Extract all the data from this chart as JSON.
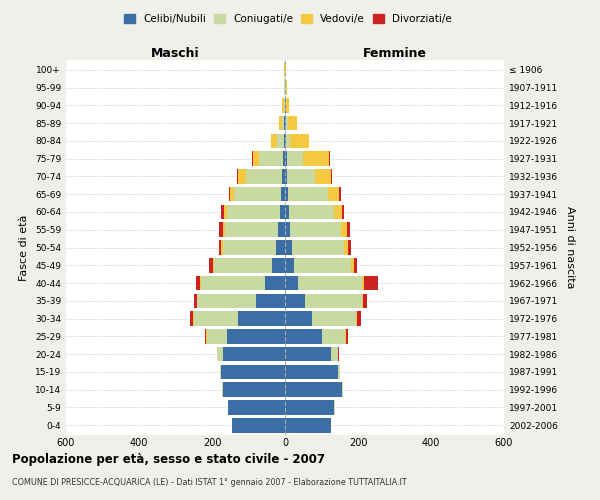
{
  "age_groups": [
    "0-4",
    "5-9",
    "10-14",
    "15-19",
    "20-24",
    "25-29",
    "30-34",
    "35-39",
    "40-44",
    "45-49",
    "50-54",
    "55-59",
    "60-64",
    "65-69",
    "70-74",
    "75-79",
    "80-84",
    "85-89",
    "90-94",
    "95-99",
    "100+"
  ],
  "birth_years": [
    "2002-2006",
    "1997-2001",
    "1992-1996",
    "1987-1991",
    "1982-1986",
    "1977-1981",
    "1972-1976",
    "1967-1971",
    "1962-1966",
    "1957-1961",
    "1952-1956",
    "1947-1951",
    "1942-1946",
    "1937-1941",
    "1932-1936",
    "1927-1931",
    "1922-1926",
    "1917-1921",
    "1912-1916",
    "1907-1911",
    "≤ 1906"
  ],
  "colors": {
    "celibi": "#3a6ea5",
    "coniugati": "#c8d9a2",
    "vedovi": "#f5c842",
    "divorziati": "#cc2222"
  },
  "male": {
    "celibi": [
      145,
      155,
      170,
      175,
      170,
      160,
      130,
      80,
      55,
      35,
      25,
      20,
      15,
      10,
      8,
      5,
      3,
      2,
      1,
      1,
      1
    ],
    "coniugati": [
      1,
      1,
      2,
      3,
      15,
      55,
      120,
      160,
      175,
      160,
      145,
      145,
      145,
      130,
      100,
      65,
      20,
      5,
      2,
      1,
      0
    ],
    "vedovi": [
      0,
      0,
      0,
      0,
      0,
      1,
      2,
      2,
      3,
      3,
      4,
      5,
      8,
      10,
      20,
      18,
      15,
      10,
      4,
      2,
      1
    ],
    "divorziati": [
      0,
      0,
      0,
      0,
      1,
      2,
      8,
      8,
      12,
      10,
      6,
      12,
      6,
      4,
      3,
      3,
      1,
      0,
      0,
      0,
      0
    ]
  },
  "female": {
    "nubili": [
      125,
      135,
      155,
      145,
      125,
      100,
      75,
      55,
      35,
      25,
      18,
      14,
      10,
      8,
      6,
      5,
      3,
      3,
      2,
      1,
      1
    ],
    "coniugati": [
      1,
      1,
      3,
      5,
      20,
      65,
      120,
      155,
      175,
      155,
      145,
      140,
      125,
      110,
      75,
      45,
      12,
      5,
      2,
      1,
      0
    ],
    "vedovi": [
      0,
      0,
      0,
      0,
      1,
      2,
      3,
      4,
      6,
      8,
      10,
      15,
      20,
      30,
      45,
      70,
      50,
      25,
      8,
      3,
      1
    ],
    "divorziati": [
      0,
      0,
      0,
      1,
      2,
      5,
      10,
      10,
      40,
      10,
      8,
      10,
      8,
      6,
      3,
      2,
      1,
      0,
      0,
      0,
      0
    ]
  },
  "title": "Popolazione per età, sesso e stato civile - 2007",
  "subtitle": "COMUNE DI PRESICCE-ACQUARICA (LE) - Dati ISTAT 1° gennaio 2007 - Elaborazione TUTTAITALIA.IT",
  "xlabel_left": "Maschi",
  "xlabel_right": "Femmine",
  "ylabel_left": "Fasce di età",
  "ylabel_right": "Anni di nascita",
  "xlim": 600,
  "legend_labels": [
    "Celibi/Nubili",
    "Coniugati/e",
    "Vedovi/e",
    "Divorziati/e"
  ],
  "bg_color": "#f0f0eb",
  "plot_bg": "#ffffff"
}
